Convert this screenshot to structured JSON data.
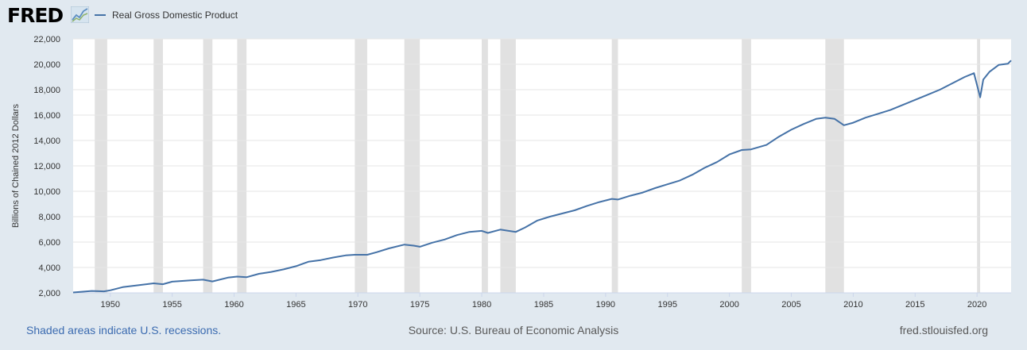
{
  "header": {
    "logo_text": "FRED",
    "legend_label": "Real Gross Domestic Product"
  },
  "footer": {
    "recession_note": "Shaded areas indicate U.S. recessions.",
    "source": "Source: U.S. Bureau of Economic Analysis",
    "site": "fred.stlouisfed.org"
  },
  "colors": {
    "background": "#e1e9f0",
    "plot_background": "#ffffff",
    "series_line": "#4572a7",
    "recession_shade": "#e1e1e1",
    "grid": "#e6e6e6"
  },
  "chart_data": {
    "type": "line",
    "title": "Real Gross Domestic Product",
    "xlabel": "",
    "ylabel": "Billions of Chained 2012 Dollars",
    "xlim": [
      1947.0,
      2022.75
    ],
    "ylim": [
      2000,
      22000
    ],
    "yticks": [
      2000,
      4000,
      6000,
      8000,
      10000,
      12000,
      14000,
      16000,
      18000,
      20000,
      22000
    ],
    "ytick_labels": [
      "2,000",
      "4,000",
      "6,000",
      "8,000",
      "10,000",
      "12,000",
      "14,000",
      "16,000",
      "18,000",
      "20,000",
      "22,000"
    ],
    "xticks": [
      1950,
      1955,
      1960,
      1965,
      1970,
      1975,
      1980,
      1985,
      1990,
      1995,
      2000,
      2005,
      2010,
      2015,
      2020
    ],
    "xtick_labels": [
      "1950",
      "1955",
      "1960",
      "1965",
      "1970",
      "1975",
      "1980",
      "1985",
      "1990",
      "1995",
      "2000",
      "2005",
      "2010",
      "2015",
      "2020"
    ],
    "grid": true,
    "legend": "top-left",
    "recessions": [
      [
        1948.75,
        1949.75
      ],
      [
        1953.5,
        1954.25
      ],
      [
        1957.5,
        1958.25
      ],
      [
        1960.25,
        1961.0
      ],
      [
        1969.75,
        1970.75
      ],
      [
        1973.75,
        1975.0
      ],
      [
        1980.0,
        1980.5
      ],
      [
        1981.5,
        1982.75
      ],
      [
        1990.5,
        1991.0
      ],
      [
        2001.0,
        2001.75
      ],
      [
        2007.75,
        2009.25
      ],
      [
        2020.0,
        2020.25
      ]
    ],
    "series": [
      {
        "name": "Real Gross Domestic Product",
        "x": [
          1947.0,
          1948.5,
          1949.5,
          1950.0,
          1951.0,
          1952.0,
          1953.5,
          1954.25,
          1955.0,
          1956.5,
          1957.5,
          1958.25,
          1959.5,
          1960.25,
          1961.0,
          1962.0,
          1963.0,
          1964.0,
          1965.0,
          1966.0,
          1967.0,
          1968.0,
          1969.0,
          1969.75,
          1970.75,
          1971.5,
          1972.5,
          1973.75,
          1974.5,
          1975.0,
          1976.0,
          1977.0,
          1978.0,
          1979.0,
          1980.0,
          1980.5,
          1981.5,
          1982.75,
          1983.5,
          1984.5,
          1985.5,
          1986.5,
          1987.5,
          1988.5,
          1989.5,
          1990.5,
          1991.0,
          1992.0,
          1993.0,
          1994.0,
          1995.0,
          1996.0,
          1997.0,
          1998.0,
          1999.0,
          2000.0,
          2001.0,
          2001.75,
          2003.0,
          2004.0,
          2005.0,
          2006.0,
          2007.0,
          2007.75,
          2008.5,
          2009.25,
          2010.0,
          2011.0,
          2012.0,
          2013.0,
          2014.0,
          2015.0,
          2016.0,
          2017.0,
          2018.0,
          2019.0,
          2019.75,
          2020.25,
          2020.5,
          2021.0,
          2021.75,
          2022.5,
          2022.75
        ],
        "values": [
          2030,
          2150,
          2120,
          2200,
          2450,
          2570,
          2750,
          2680,
          2880,
          2990,
          3040,
          2900,
          3200,
          3280,
          3230,
          3500,
          3650,
          3850,
          4100,
          4450,
          4580,
          4780,
          4950,
          5000,
          5000,
          5200,
          5500,
          5800,
          5720,
          5630,
          5950,
          6200,
          6550,
          6800,
          6880,
          6720,
          6980,
          6800,
          7150,
          7700,
          8000,
          8250,
          8500,
          8850,
          9150,
          9400,
          9350,
          9650,
          9900,
          10250,
          10550,
          10850,
          11300,
          11850,
          12300,
          12900,
          13250,
          13300,
          13650,
          14300,
          14850,
          15300,
          15700,
          15800,
          15700,
          15200,
          15400,
          15800,
          16100,
          16400,
          16800,
          17200,
          17600,
          18000,
          18500,
          19000,
          19300,
          17400,
          18800,
          19400,
          19950,
          20050,
          20300
        ]
      }
    ]
  }
}
